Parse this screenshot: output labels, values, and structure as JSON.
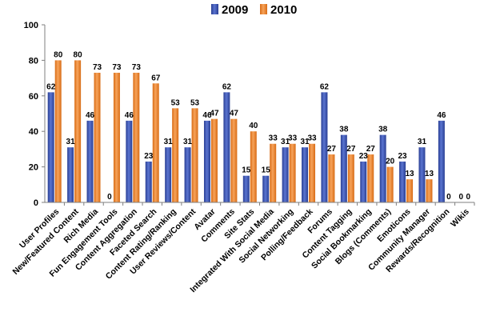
{
  "chart_data": {
    "type": "bar",
    "categories": [
      "User Profiles",
      "New/Featured Content",
      "Rich Media",
      "Fun Engagement Tools",
      "Content Aggregation",
      "Faceted Search",
      "Content Rating/Ranking",
      "User Reviews/Content",
      "Avatar",
      "Comments",
      "Site Stats",
      "Integrated With Social Media",
      "Social Networking",
      "Polling/Feedback",
      "Forums",
      "Content Tagging",
      "Social Bookmarking",
      "Blogs (Comments)",
      "Emoticons",
      "Community Manager",
      "Rewards/Recognition",
      "Wikis"
    ],
    "series": [
      {
        "name": "2009",
        "color": "#3f58b5",
        "values": [
          62,
          31,
          46,
          0,
          46,
          23,
          31,
          31,
          46,
          62,
          15,
          15,
          31,
          31,
          62,
          38,
          23,
          38,
          23,
          31,
          46,
          0
        ]
      },
      {
        "name": "2010",
        "color": "#f0892e",
        "values": [
          80,
          80,
          73,
          73,
          73,
          67,
          53,
          53,
          47,
          47,
          40,
          33,
          33,
          33,
          27,
          27,
          27,
          20,
          13,
          13,
          0,
          0
        ]
      }
    ],
    "yticks": [
      "0",
      "20",
      "40",
      "60",
      "80",
      "100"
    ],
    "ylim": [
      0,
      100
    ],
    "grid": false,
    "legend_position": "top-center"
  }
}
